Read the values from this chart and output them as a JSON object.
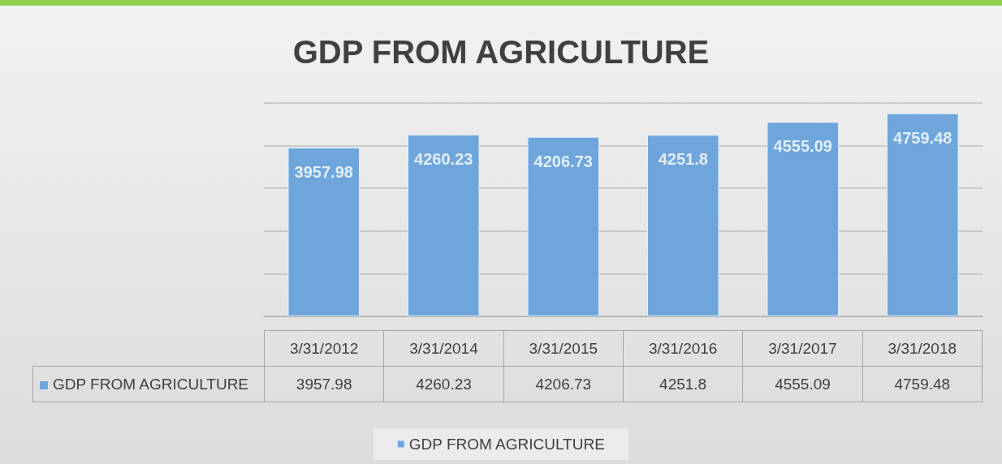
{
  "chart_data": {
    "type": "bar",
    "title": "GDP FROM AGRICULTURE",
    "categories": [
      "3/31/2012",
      "3/31/2014",
      "3/31/2015",
      "3/31/2016",
      "3/31/2017",
      "3/31/2018"
    ],
    "series": [
      {
        "name": "GDP FROM AGRICULTURE",
        "color": "#6ea6dc",
        "values": [
          3957.98,
          4260.23,
          4206.73,
          4251.8,
          4555.09,
          4759.48
        ]
      }
    ],
    "annotations": [
      {
        "text": "3957.98",
        "x": "3/31/2012",
        "y": 3957.98
      },
      {
        "text": "4260.23",
        "x": "3/31/2014",
        "y": 4260.23
      },
      {
        "text": "4206.73",
        "x": "3/31/2015",
        "y": 4206.73
      },
      {
        "text": "4251.8",
        "x": "3/31/2016",
        "y": 4251.8
      },
      {
        "text": "4555.09",
        "x": "3/31/2017",
        "y": 4555.09
      },
      {
        "text": "4759.48",
        "x": "3/31/2018",
        "y": 4759.48
      }
    ],
    "ylim": [
      0,
      5000
    ],
    "yticks": [
      {
        "value": 0,
        "label": null
      },
      {
        "value": 1000,
        "label": null
      },
      {
        "value": 2000,
        "label": null
      },
      {
        "value": 3000,
        "label": null
      },
      {
        "value": 4000,
        "label": null
      },
      {
        "value": 5000,
        "label": null
      }
    ],
    "grid": "y",
    "data_labels": true,
    "legend": "bottom"
  }
}
